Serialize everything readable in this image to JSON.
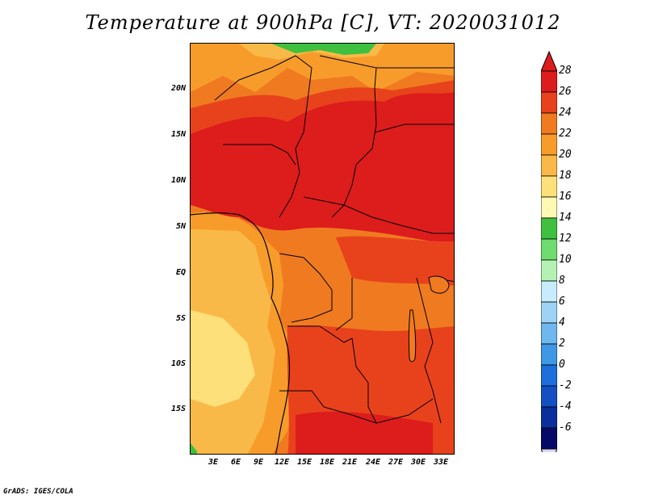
{
  "title": "Temperature at 900hPa [C], VT: 2020031012",
  "credit": "GrADS: IGES/COLA",
  "map": {
    "lat_ticks": [
      "20N",
      "15N",
      "10N",
      "5N",
      "EQ",
      "5S",
      "10S",
      "15S"
    ],
    "lon_ticks": [
      "3E",
      "6E",
      "9E",
      "12E",
      "15E",
      "18E",
      "21E",
      "24E",
      "27E",
      "30E",
      "33E"
    ]
  },
  "colorbar": {
    "labels": [
      "28",
      "26",
      "24",
      "22",
      "20",
      "18",
      "16",
      "14",
      "12",
      "10",
      "8",
      "6",
      "4",
      "2",
      "0",
      "-2",
      "-4",
      "-6"
    ],
    "colors": {
      "28": "#dd1c1c",
      "26": "#e8421c",
      "24": "#f07a20",
      "22": "#f79c2a",
      "20": "#f9b948",
      "18": "#fde079",
      "16": "#fff9b3",
      "14": "#3fc03f",
      "12": "#6fdc6f",
      "10": "#b3f2b3",
      "8": "#c8ecfb",
      "6": "#9dd4f5",
      "4": "#6fb7ef",
      "2": "#3f98e6",
      "0": "#1e6edb",
      "-2": "#144fc3",
      "-4": "#0a2e9c",
      "-6": "#050a66"
    },
    "over_color": "#dd1c1c",
    "under_color": "#d8d8f5"
  }
}
